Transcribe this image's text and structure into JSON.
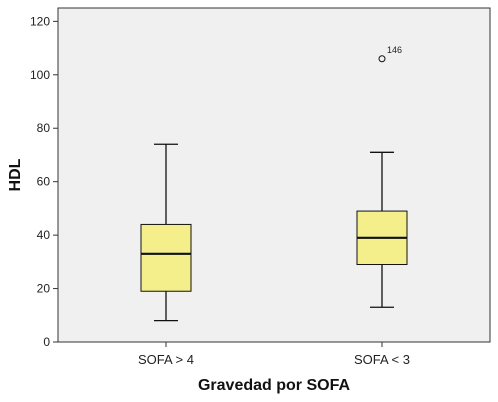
{
  "chart_data": {
    "type": "box",
    "xlabel": "Gravedad por SOFA",
    "ylabel": "HDL",
    "ylim": [
      0,
      125
    ],
    "yticks": [
      0,
      20,
      40,
      60,
      80,
      100,
      120
    ],
    "grid": false,
    "box_color": "#f4ef8a",
    "plot_background": "#f0f0f0",
    "categories": [
      "SOFA > 4",
      "SOFA < 3"
    ],
    "boxes": [
      {
        "category": "SOFA > 4",
        "whisker_low": 8,
        "q1": 19,
        "median": 33,
        "q3": 44,
        "whisker_high": 74,
        "outliers": []
      },
      {
        "category": "SOFA < 3",
        "whisker_low": 13,
        "q1": 29,
        "median": 39,
        "q3": 49,
        "whisker_high": 71,
        "outliers": [
          {
            "value": 106,
            "label": "146"
          }
        ]
      }
    ]
  }
}
